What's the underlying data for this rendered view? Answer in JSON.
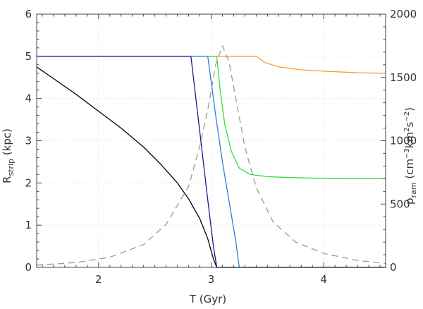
{
  "chart_data": {
    "type": "line",
    "xlabel": "T (Gyr)",
    "ylabel": {
      "main": "R",
      "sub": "strip",
      "unit": " (kpc)"
    },
    "ylabel_right": {
      "p": "p",
      "p_sub": "ram",
      "open": " (cm",
      "exp1": "−3",
      "mid": "km",
      "exp2": "2",
      "s": "s",
      "exp3": "−2",
      "close": ")"
    },
    "xlim": [
      1.45,
      4.55
    ],
    "ylim": [
      0,
      6
    ],
    "ylim_right": [
      0,
      2000
    ],
    "x_ticks": [
      2,
      3,
      4
    ],
    "x_tick_labels": [
      "2",
      "3",
      "4"
    ],
    "y_ticks": [
      0,
      1,
      2,
      3,
      4,
      5,
      6
    ],
    "y_tick_labels": [
      "0",
      "1",
      "2",
      "3",
      "4",
      "5",
      "6"
    ],
    "y_right_ticks": [
      0,
      500,
      1000,
      1500,
      2000
    ],
    "y_right_tick_labels": [
      "0",
      "500",
      "1000",
      "1500",
      "2000"
    ],
    "grid": true,
    "series": [
      {
        "color": "#000000",
        "axis": "left",
        "style": "solid",
        "points": [
          [
            1.45,
            4.75
          ],
          [
            1.6,
            4.47
          ],
          [
            1.8,
            4.1
          ],
          [
            2.0,
            3.7
          ],
          [
            2.2,
            3.3
          ],
          [
            2.4,
            2.85
          ],
          [
            2.55,
            2.45
          ],
          [
            2.7,
            2.0
          ],
          [
            2.8,
            1.62
          ],
          [
            2.9,
            1.15
          ],
          [
            2.97,
            0.68
          ],
          [
            3.02,
            0.2
          ],
          [
            3.05,
            0.0
          ],
          [
            4.55,
            0.0
          ]
        ]
      },
      {
        "color": "#1a1a8c",
        "axis": "left",
        "style": "solid",
        "points": [
          [
            1.45,
            5.0
          ],
          [
            2.82,
            5.0
          ],
          [
            2.9,
            3.2
          ],
          [
            2.97,
            1.6
          ],
          [
            3.02,
            0.5
          ],
          [
            3.05,
            0.0
          ],
          [
            4.55,
            0.0
          ]
        ]
      },
      {
        "color": "#2a7fd4",
        "axis": "left",
        "style": "solid",
        "points": [
          [
            2.82,
            5.0
          ],
          [
            2.97,
            5.0
          ],
          [
            3.04,
            3.6
          ],
          [
            3.1,
            2.5
          ],
          [
            3.17,
            1.4
          ],
          [
            3.22,
            0.6
          ],
          [
            3.25,
            0.0
          ]
        ]
      },
      {
        "color": "#33dd33",
        "axis": "left",
        "style": "solid",
        "points": [
          [
            2.97,
            5.0
          ],
          [
            3.05,
            5.0
          ],
          [
            3.08,
            4.2
          ],
          [
            3.12,
            3.4
          ],
          [
            3.18,
            2.75
          ],
          [
            3.25,
            2.35
          ],
          [
            3.35,
            2.2
          ],
          [
            3.5,
            2.15
          ],
          [
            3.8,
            2.12
          ],
          [
            4.2,
            2.1
          ],
          [
            4.55,
            2.1
          ]
        ]
      },
      {
        "color": "#ff9933",
        "axis": "left",
        "style": "solid",
        "points": [
          [
            3.05,
            5.0
          ],
          [
            3.4,
            5.0
          ],
          [
            3.48,
            4.85
          ],
          [
            3.6,
            4.75
          ],
          [
            3.8,
            4.68
          ],
          [
            4.0,
            4.65
          ],
          [
            4.3,
            4.61
          ],
          [
            4.55,
            4.6
          ]
        ]
      },
      {
        "color": "#999999",
        "axis": "right",
        "style": "dashed",
        "points": [
          [
            1.45,
            18
          ],
          [
            1.8,
            38
          ],
          [
            2.1,
            80
          ],
          [
            2.4,
            180
          ],
          [
            2.6,
            340
          ],
          [
            2.8,
            640
          ],
          [
            2.9,
            960
          ],
          [
            2.98,
            1290
          ],
          [
            3.04,
            1600
          ],
          [
            3.1,
            1750
          ],
          [
            3.16,
            1620
          ],
          [
            3.22,
            1330
          ],
          [
            3.3,
            950
          ],
          [
            3.4,
            630
          ],
          [
            3.55,
            360
          ],
          [
            3.75,
            200
          ],
          [
            4.0,
            110
          ],
          [
            4.3,
            55
          ],
          [
            4.55,
            30
          ]
        ]
      }
    ]
  }
}
